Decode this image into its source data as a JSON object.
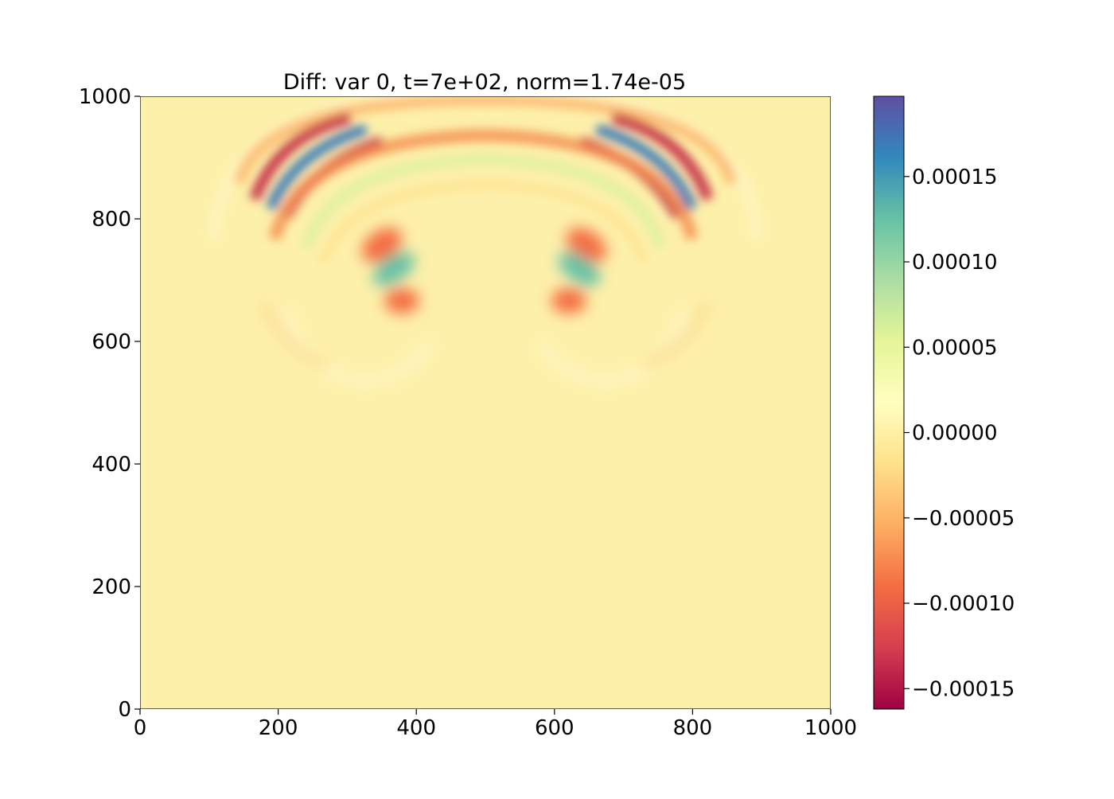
{
  "chart_data": {
    "type": "heatmap",
    "title": "Diff: var 0, t=7e+02, norm=1.74e-05",
    "xlabel": "",
    "ylabel": "",
    "xlim": [
      0,
      1000
    ],
    "ylim": [
      0,
      1000
    ],
    "x_ticks": [
      0,
      200,
      400,
      600,
      800,
      1000
    ],
    "y_ticks": [
      0,
      200,
      400,
      600,
      800,
      1000
    ],
    "x_tick_labels": [
      "0",
      "200",
      "400",
      "600",
      "800",
      "1000"
    ],
    "y_tick_labels": [
      "0",
      "200",
      "400",
      "600",
      "800",
      "1000"
    ],
    "colormap": "Spectral",
    "colorbar": {
      "vmin": -0.000162,
      "vmax": 0.000197,
      "ticks": [
        0.00015,
        0.0001,
        5e-05,
        0,
        -5e-05,
        -0.0001,
        -0.00015
      ],
      "tick_labels": [
        "0.00015",
        "0.00010",
        "0.00005",
        "0.00000",
        "−0.00005",
        "−0.00010",
        "−0.00015"
      ]
    },
    "features": [
      {
        "name": "upper-left arc trough",
        "x": 265,
        "y": 860,
        "value": -0.00016
      },
      {
        "name": "upper-left arc peak",
        "x": 240,
        "y": 880,
        "value": 0.00018
      },
      {
        "name": "upper-right arc trough",
        "x": 755,
        "y": 860,
        "value": -0.00016
      },
      {
        "name": "upper-right arc peak",
        "x": 780,
        "y": 880,
        "value": 0.00018
      },
      {
        "name": "inner-left peak",
        "x": 365,
        "y": 718,
        "value": 0.0001
      },
      {
        "name": "inner-right peak",
        "x": 640,
        "y": 720,
        "value": 0.0001
      },
      {
        "name": "inner-left upper trough",
        "x": 350,
        "y": 765,
        "value": -8e-05
      },
      {
        "name": "inner-left lower trough",
        "x": 385,
        "y": 665,
        "value": -7e-05
      },
      {
        "name": "inner-right upper trough",
        "x": 660,
        "y": 765,
        "value": -8e-05
      },
      {
        "name": "inner-right lower trough",
        "x": 630,
        "y": 665,
        "value": -7e-05
      }
    ],
    "colors": {
      "background": "#ffffff",
      "field_zero": "#fdf0aa",
      "axis": "#000000"
    }
  }
}
